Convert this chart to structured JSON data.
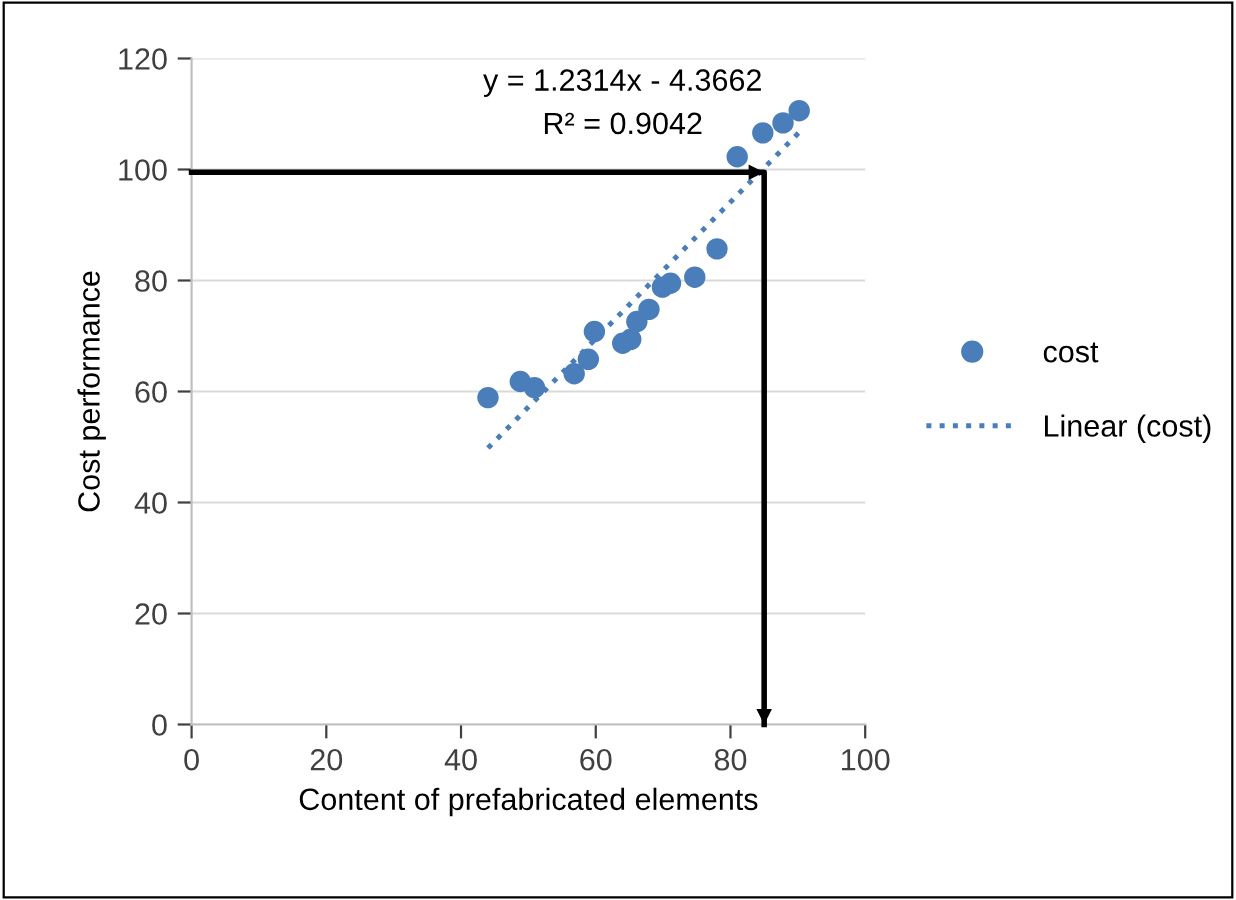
{
  "chart_data": {
    "type": "scatter",
    "xlabel": "Content of prefabricated elements",
    "ylabel": "Cost performance",
    "xlim": [
      0,
      100
    ],
    "xticks": [
      0,
      20,
      40,
      60,
      80,
      100
    ],
    "ylim": [
      0,
      120
    ],
    "yticks": [
      0,
      20,
      40,
      60,
      80,
      100,
      120
    ],
    "grid": "y",
    "legend": "right",
    "annotations": [
      "y = 1.2314x - 4.3662",
      "R² = 0.9042"
    ],
    "series": [
      {
        "name": "cost",
        "marker": "circle",
        "color": "#4a7ebb",
        "x": [
          44.0,
          48.8,
          50.9,
          56.8,
          58.9,
          59.8,
          64.0,
          65.2,
          66.1,
          67.9,
          69.9,
          71.1,
          74.7,
          78.0,
          81.0,
          84.8,
          87.8,
          90.2
        ],
        "values": [
          58.9,
          61.8,
          60.7,
          63.2,
          65.8,
          70.8,
          68.7,
          69.4,
          72.6,
          74.8,
          78.8,
          79.5,
          80.6,
          85.7,
          102.3,
          106.6,
          108.4,
          110.6
        ]
      },
      {
        "name": "Linear (cost)",
        "type": "line",
        "line_style": "dotted",
        "color": "#4a7ebb",
        "x": [
          44.0,
          90.2
        ],
        "values": [
          49.8,
          106.7
        ]
      },
      {
        "type": "line",
        "line_style": "solid",
        "color": "#000000",
        "x": [
          0,
          85,
          85
        ],
        "values": [
          99.5,
          99.5,
          0
        ]
      }
    ]
  }
}
